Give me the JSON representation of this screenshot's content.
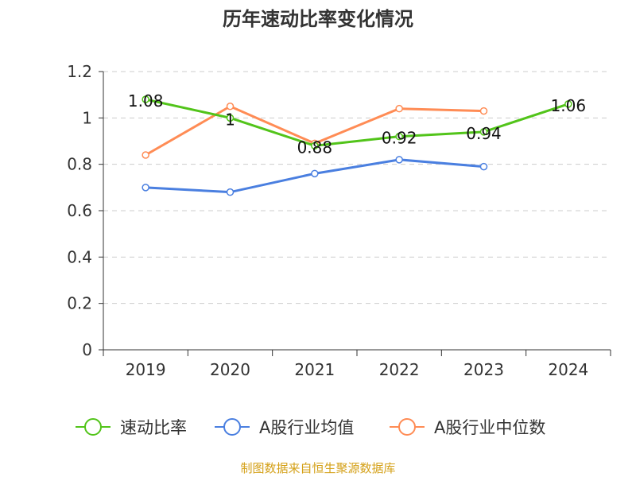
{
  "chart_data": {
    "type": "line",
    "title": "历年速动比率变化情况",
    "categories": [
      "2019",
      "2020",
      "2021",
      "2022",
      "2023",
      "2024"
    ],
    "ylim": [
      0,
      1.2
    ],
    "yticks": [
      "0",
      "0.2",
      "0.4",
      "0.6",
      "0.8",
      "1",
      "1.2"
    ],
    "grid": true,
    "legend_position": "bottom",
    "series": [
      {
        "name": "速动比率",
        "color": "#52c41a",
        "values": [
          1.08,
          1.0,
          0.88,
          0.92,
          0.94,
          1.06
        ],
        "labels": [
          "1.08",
          "1",
          "0.88",
          "0.92",
          "0.94",
          "1.06"
        ]
      },
      {
        "name": "A股行业均值",
        "color": "#4a7fe0",
        "values": [
          0.7,
          0.68,
          0.76,
          0.82,
          0.79,
          null
        ]
      },
      {
        "name": "A股行业中位数",
        "color": "#ff8c55",
        "values": [
          0.84,
          1.05,
          0.89,
          1.04,
          1.03,
          null
        ]
      }
    ],
    "source": "制图数据来自恒生聚源数据库"
  }
}
